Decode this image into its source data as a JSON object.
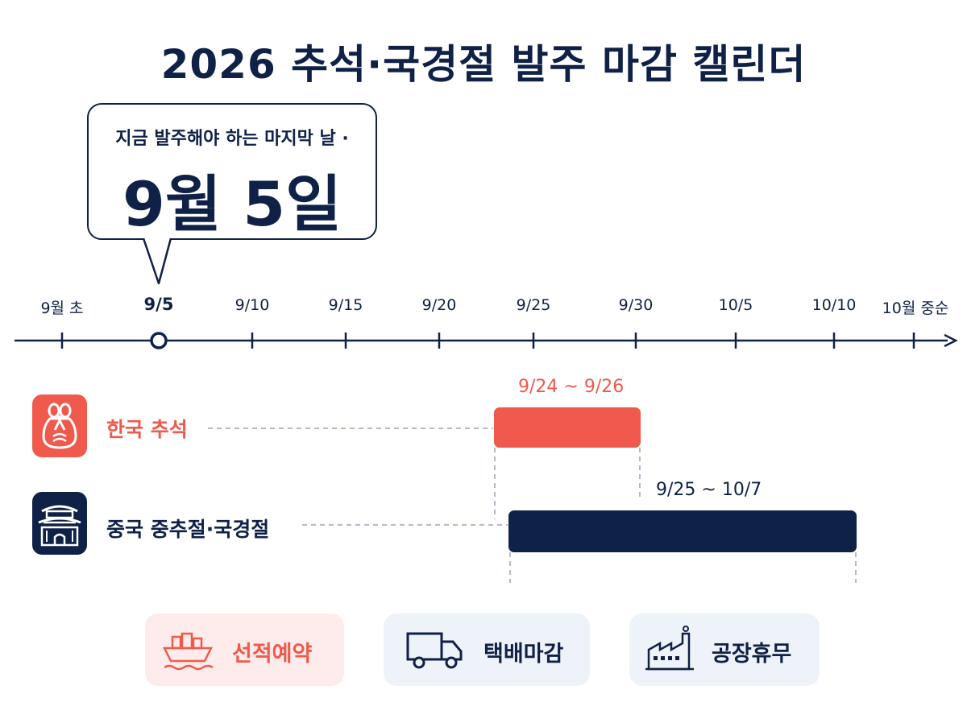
{
  "title": "2026 추석·국경절 발주 마감 캘린더",
  "callout": {
    "subtitle": "지금 발주해야 하는 마지막 날 ·",
    "main": "9월 5일"
  },
  "timeline": {
    "ticks": [
      {
        "label": "9월 초",
        "highlight": false
      },
      {
        "label": "9/5",
        "highlight": true
      },
      {
        "label": "9/10",
        "highlight": false
      },
      {
        "label": "9/15",
        "highlight": false
      },
      {
        "label": "9/20",
        "highlight": false
      },
      {
        "label": "9/25",
        "highlight": false
      },
      {
        "label": "9/30",
        "highlight": false
      },
      {
        "label": "10/5",
        "highlight": false
      },
      {
        "label": "10/10",
        "highlight": false
      },
      {
        "label": "10월 중순",
        "highlight": false
      }
    ]
  },
  "rows": [
    {
      "label": "한국 추석",
      "range": "9/24 ~ 9/26",
      "color": "#ef5a4c",
      "icon": "lucky-bag-icon"
    },
    {
      "label": "중국 중추절·국경절",
      "range": "9/25 ~ 10/7",
      "color": "#0f2147",
      "icon": "palace-gate-icon"
    }
  ],
  "legend": [
    {
      "label": "선적예약",
      "icon": "cargo-ship-icon",
      "color": "#ef5a4c"
    },
    {
      "label": "택배마감",
      "icon": "delivery-truck-icon",
      "color": "#0f2147"
    },
    {
      "label": "공장휴무",
      "icon": "factory-icon",
      "color": "#0f2147"
    }
  ],
  "colors": {
    "navy": "#0f2147",
    "red": "#ef5a4c"
  }
}
